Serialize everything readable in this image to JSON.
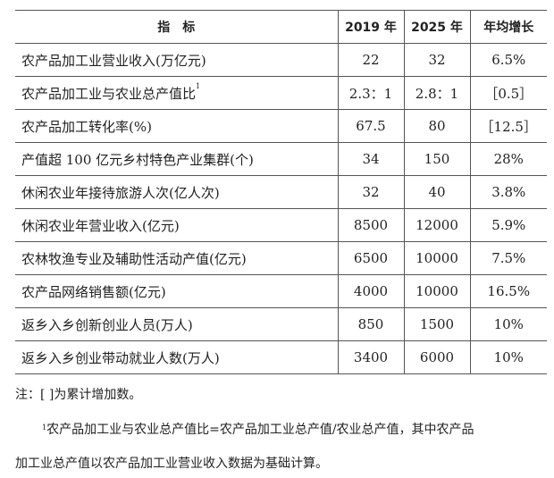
{
  "table": {
    "headers": [
      "指　标",
      "2019 年",
      "2025 年",
      "年均增长"
    ],
    "rows": [
      {
        "name": "农产品加工业营业收入(万亿元)",
        "sup": "",
        "y2019": "22",
        "y2025": "32",
        "growth": "6.5%"
      },
      {
        "name": "农产品加工业与农业总产值比",
        "sup": "1",
        "y2019": "2.3：1",
        "y2025": "2.8：1",
        "growth": "［0.5］"
      },
      {
        "name": "农产品加工转化率(%)",
        "sup": "",
        "y2019": "67.5",
        "y2025": "80",
        "growth": "［12.5］"
      },
      {
        "name": "产值超 100 亿元乡村特色产业集群(个)",
        "sup": "",
        "y2019": "34",
        "y2025": "150",
        "growth": "28%"
      },
      {
        "name": "休闲农业年接待旅游人次(亿人次)",
        "sup": "",
        "y2019": "32",
        "y2025": "40",
        "growth": "3.8%"
      },
      {
        "name": "休闲农业年营业收入(亿元)",
        "sup": "",
        "y2019": "8500",
        "y2025": "12000",
        "growth": "5.9%"
      },
      {
        "name": "农林牧渔专业及辅助性活动产值(亿元)",
        "sup": "",
        "y2019": "6500",
        "y2025": "10000",
        "growth": "7.5%"
      },
      {
        "name": "农产品网络销售额(亿元)",
        "sup": "",
        "y2019": "4000",
        "y2025": "10000",
        "growth": "16.5%"
      },
      {
        "name": "返乡入乡创新创业人员(万人)",
        "sup": "",
        "y2019": "850",
        "y2025": "1500",
        "growth": "10%"
      },
      {
        "name": "返乡入乡创业带动就业人数(万人)",
        "sup": "",
        "y2019": "3400",
        "y2025": "6000",
        "growth": "10%"
      }
    ]
  },
  "notes": {
    "note1": "注：[ ]为累计增加数。",
    "footnote_mark": "1",
    "footnote_line1": "农产品加工业与农业总产值比=农产品加工业总产值/农业总产值，其中农产品",
    "footnote_line2": "加工业总产值以农产品加工业营业收入数据为基础计算。"
  }
}
